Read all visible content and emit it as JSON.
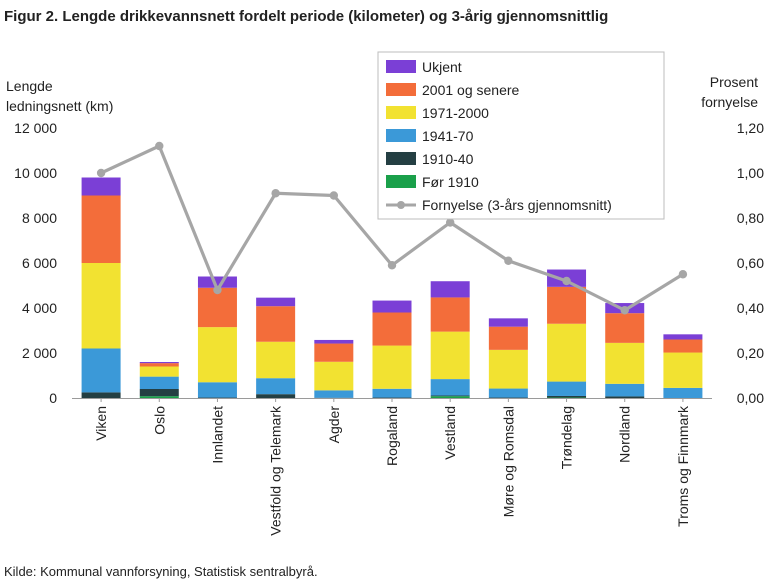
{
  "figure": {
    "title": "Figur  2. Lengde drikkevannsnett fordelt periode (kilometer) og 3-årig gjennomsnittlig",
    "source": "Kilde: Kommunal vannforsyning, Statistisk sentralbyrå.",
    "ylabel_left_line1": "Lengde",
    "ylabel_left_line2": "ledningsnett  (km)",
    "ylabel_right_line1": "Prosent",
    "ylabel_right_line2": "fornyelse"
  },
  "chart_data": {
    "type": "bar",
    "stacked": true,
    "categories": [
      "Viken",
      "Oslo",
      "Innlandet",
      "Vestfold og Telemark",
      "Agder",
      "Rogaland",
      "Vestland",
      "Møre og Romsdal",
      "Trøndelag",
      "Nordland",
      "Troms og Finnmark"
    ],
    "ylim": [
      0,
      12000
    ],
    "y_ticks": [
      "0",
      "2 000",
      "4 000",
      "6 000",
      "8 000",
      "10 000",
      "12 000"
    ],
    "y2lim": [
      0,
      1.2
    ],
    "y2_ticks": [
      "0,00",
      "0,20",
      "0,40",
      "0,60",
      "0,80",
      "1,00",
      "1,20"
    ],
    "series": [
      {
        "name": "Før 1910",
        "color": "#1aa04a",
        "values": [
          0,
          80,
          0,
          0,
          0,
          0,
          80,
          0,
          20,
          0,
          0
        ]
      },
      {
        "name": "1910-40",
        "color": "#243f43",
        "values": [
          250,
          320,
          20,
          170,
          10,
          20,
          30,
          20,
          70,
          70,
          0
        ]
      },
      {
        "name": "1941-70",
        "color": "#3b99d8",
        "values": [
          1950,
          550,
          680,
          710,
          330,
          390,
          730,
          400,
          640,
          560,
          450
        ]
      },
      {
        "name": "1971-2000",
        "color": "#f2e231",
        "values": [
          3800,
          450,
          2450,
          1620,
          1270,
          1920,
          2110,
          1720,
          2570,
          1820,
          1570
        ]
      },
      {
        "name": "2001 og senere",
        "color": "#f36d3a",
        "values": [
          3000,
          150,
          1750,
          1580,
          810,
          1470,
          1520,
          1030,
          1640,
          1320,
          580
        ]
      },
      {
        "name": "Ukjent",
        "color": "#7b3fd6",
        "values": [
          800,
          50,
          500,
          380,
          160,
          530,
          720,
          370,
          770,
          450,
          230
        ]
      }
    ],
    "line": {
      "name": "Fornyelse  (3-års gjennomsnitt)",
      "color": "#a6a6a6",
      "values": [
        1.0,
        1.12,
        0.48,
        0.91,
        0.9,
        0.59,
        0.78,
        0.61,
        0.52,
        0.39,
        0.55
      ]
    },
    "legend": [
      {
        "name": "Ukjent",
        "color": "#7b3fd6",
        "kind": "bar"
      },
      {
        "name": "2001 og senere",
        "color": "#f36d3a",
        "kind": "bar"
      },
      {
        "name": "1971-2000",
        "color": "#f2e231",
        "kind": "bar"
      },
      {
        "name": "1941-70",
        "color": "#3b99d8",
        "kind": "bar"
      },
      {
        "name": "1910-40",
        "color": "#243f43",
        "kind": "bar"
      },
      {
        "name": "Før 1910",
        "color": "#1aa04a",
        "kind": "bar"
      },
      {
        "name": "Fornyelse  (3-års gjennomsnitt)",
        "color": "#a6a6a6",
        "kind": "line"
      }
    ],
    "legend_position": "top-right",
    "grid": false
  }
}
